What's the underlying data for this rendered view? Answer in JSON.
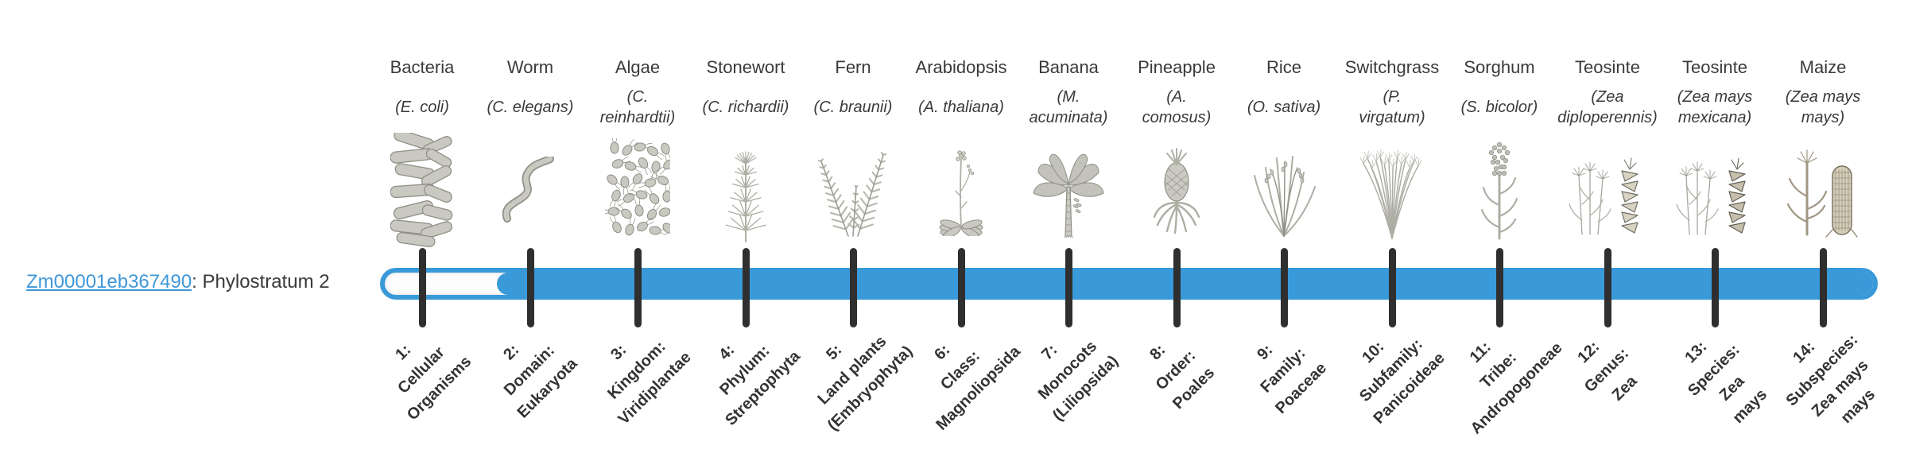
{
  "gene": {
    "id": "Zm00001eb367490",
    "suffix": ": Phylostratum 2",
    "phylostratum": 2
  },
  "timeline": {
    "strata_count": 14,
    "fill_starts_at_stratum": 2
  },
  "colors": {
    "bar_blue": "#3a99d9",
    "link_blue": "#3e97d9",
    "tick_dark": "#2f2f2f",
    "text_dark": "#3a3a3a"
  },
  "strata": [
    {
      "index": 1,
      "name": "Bacteria",
      "sci_name": "(E. coli)",
      "icon": "bacteria-illustration",
      "stage_label": "1:\nCellular\nOrganisms"
    },
    {
      "index": 2,
      "name": "Worm",
      "sci_name": "(C. elegans)",
      "icon": "worm-illustration",
      "stage_label": "2:\nDomain:\nEukaryota"
    },
    {
      "index": 3,
      "name": "Algae",
      "sci_name": "(C.\nreinhardtii)",
      "icon": "algae-illustration",
      "stage_label": "3:\nKingdom:\nViridiplantae"
    },
    {
      "index": 4,
      "name": "Stonewort",
      "sci_name": "(C. richardii)",
      "icon": "stonewort-illustration",
      "stage_label": "4:\nPhylum:\nStreptophyta"
    },
    {
      "index": 5,
      "name": "Fern",
      "sci_name": "(C. braunii)",
      "icon": "fern-illustration",
      "stage_label": "5:\nLand plants\n(Embryophyta)"
    },
    {
      "index": 6,
      "name": "Arabidopsis",
      "sci_name": "(A. thaliana)",
      "icon": "arabidopsis-illustration",
      "stage_label": "6:\nClass:\nMagnoliopsida"
    },
    {
      "index": 7,
      "name": "Banana",
      "sci_name": "(M.\nacuminata)",
      "icon": "banana-illustration",
      "stage_label": "7:\nMonocots\n(Liliopsida)"
    },
    {
      "index": 8,
      "name": "Pineapple",
      "sci_name": "(A.\ncomosus)",
      "icon": "pineapple-illustration",
      "stage_label": "8:\nOrder:\nPoales"
    },
    {
      "index": 9,
      "name": "Rice",
      "sci_name": "(O. sativa)",
      "icon": "rice-illustration",
      "stage_label": "9:\nFamily:\nPoaceae"
    },
    {
      "index": 10,
      "name": "Switchgrass",
      "sci_name": "(P.\nvirgatum)",
      "icon": "switchgrass-illustration",
      "stage_label": "10:\nSubfamily:\nPanicoideae"
    },
    {
      "index": 11,
      "name": "Sorghum",
      "sci_name": "(S. bicolor)",
      "icon": "sorghum-illustration",
      "stage_label": "11:\nTribe:\nAndropogoneae"
    },
    {
      "index": 12,
      "name": "Teosinte",
      "sci_name": "(Zea\ndiploperennis)",
      "icon": "teosinte-diploperennis-illustration",
      "stage_label": "12:\nGenus:\nZea"
    },
    {
      "index": 13,
      "name": "Teosinte",
      "sci_name": "(Zea mays\nmexicana)",
      "icon": "teosinte-mexicana-illustration",
      "stage_label": "13:\nSpecies:\nZea\nmays"
    },
    {
      "index": 14,
      "name": "Maize",
      "sci_name": "(Zea mays\nmays)",
      "icon": "maize-illustration",
      "stage_label": "14:\nSubspecies:\nZea mays\nmays"
    }
  ]
}
